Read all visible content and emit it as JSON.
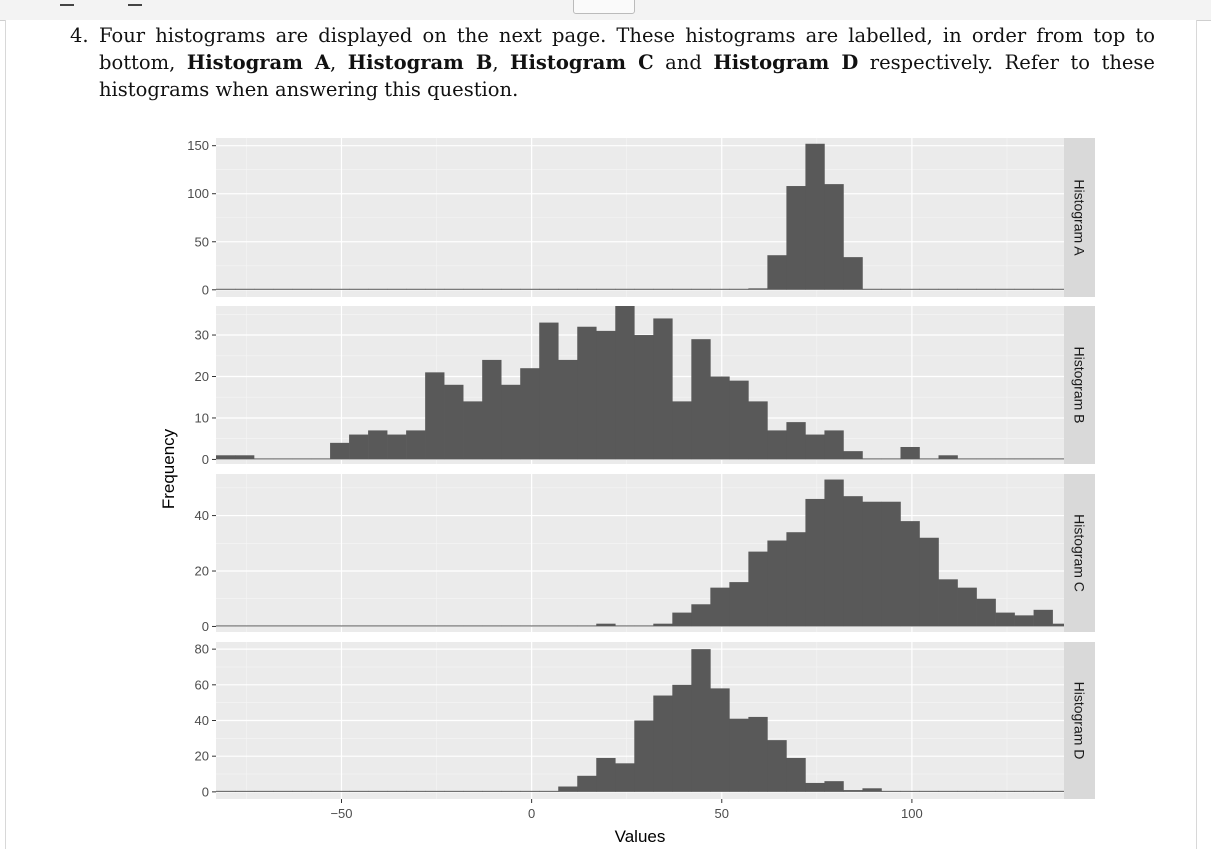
{
  "question": {
    "number": "4.",
    "text_1": "Four histograms are displayed on the next page. These histograms are labelled, in order from top to bottom, ",
    "bold_a": "Histogram A",
    "sep_1": ", ",
    "bold_b": "Histogram B",
    "sep_2": ", ",
    "bold_c": "Histogram C",
    "sep_3": " and ",
    "bold_d": "Histogram D",
    "text_2": " respectively. Refer to these histograms when answering this question."
  },
  "chart_data": {
    "type": "histogram-facets",
    "xlabel": "Values",
    "ylabel": "Frequency",
    "x_range": [
      -83,
      140
    ],
    "x_ticks": [
      -50,
      0,
      50,
      100
    ],
    "x_tick_labels": [
      "−50",
      "0",
      "50",
      "100"
    ],
    "bin_width": 5,
    "bin_start": -83,
    "bar_color": "#595959",
    "panel_color": "#ebebeb",
    "strip_color": "#d9d9d9",
    "panels": [
      {
        "label": "Histogram A",
        "y_range": [
          -7.5,
          158
        ],
        "y_ticks": [
          0,
          50,
          100,
          150
        ],
        "counts": [
          0,
          0,
          0,
          0,
          0,
          0,
          0,
          0,
          0,
          0,
          0,
          0,
          0,
          0,
          0,
          0,
          0,
          0,
          0,
          0,
          0,
          0,
          0,
          0,
          0,
          0,
          0,
          0,
          1.5,
          36,
          108,
          152,
          110,
          34,
          0.5,
          0,
          0,
          0,
          0,
          0,
          0,
          0,
          0,
          0,
          0
        ]
      },
      {
        "label": "Histogram B",
        "y_range": [
          -1.1,
          37
        ],
        "y_ticks": [
          0,
          10,
          20,
          30
        ],
        "counts": [
          1,
          1,
          0,
          0,
          0,
          0,
          4,
          6,
          7,
          6,
          7,
          21,
          18,
          14,
          24,
          18,
          22,
          33,
          24,
          32,
          31,
          37,
          30,
          34,
          14,
          29,
          20,
          19,
          14,
          7,
          9,
          6,
          7,
          2,
          0,
          0,
          3,
          0,
          1,
          0,
          0,
          0,
          0,
          0,
          0
        ]
      },
      {
        "label": "Histogram C",
        "y_range": [
          -2,
          55
        ],
        "y_ticks": [
          0,
          20,
          40
        ],
        "counts": [
          0,
          0,
          0,
          0,
          0,
          0,
          0,
          0,
          0,
          0,
          0,
          0,
          0,
          0,
          0,
          0,
          0,
          0,
          0,
          0,
          1,
          0,
          0,
          1,
          5,
          8,
          14,
          16,
          27,
          31,
          34,
          46,
          53,
          47,
          45,
          45,
          38,
          32,
          17,
          14,
          10,
          5,
          4,
          6,
          1
        ]
      },
      {
        "label": "Histogram D",
        "y_range": [
          -4,
          84
        ],
        "y_ticks": [
          0,
          20,
          40,
          60,
          80
        ],
        "counts": [
          0,
          0,
          0,
          0,
          0,
          0,
          0,
          0,
          0,
          0,
          0,
          0,
          0,
          0,
          0,
          0,
          0,
          0,
          3,
          9,
          19,
          16,
          40,
          54,
          60,
          80,
          58,
          41,
          42,
          29,
          19,
          5,
          6,
          1,
          2,
          0,
          0,
          0,
          0,
          0,
          0,
          0,
          0,
          0,
          0
        ]
      }
    ]
  }
}
